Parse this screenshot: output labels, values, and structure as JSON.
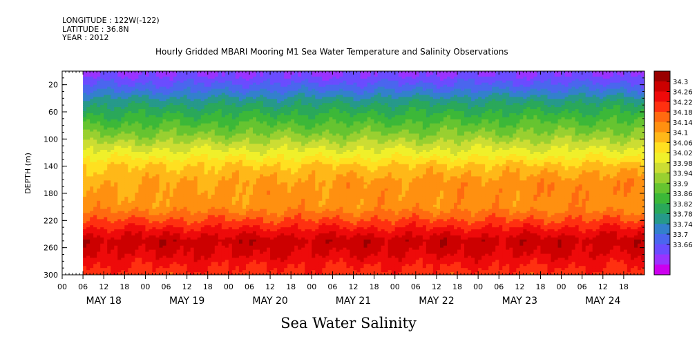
{
  "meta": {
    "longitude": "LONGITUDE : 122W(-122)",
    "latitude": "LATITUDE : 36.8N",
    "year": "YEAR : 2012"
  },
  "chart_data": {
    "type": "heatmap",
    "title": "Hourly Gridded MBARI Mooring M1 Sea Water Temperature and Salinity Observations",
    "xlabel": "Sea Water Salinity",
    "ylabel": "DEPTH (m)",
    "ylim": [
      300,
      0
    ],
    "xlim_hours_since_may18_00": [
      0,
      168
    ],
    "data_start_hour": 6,
    "y_ticks": [
      "20",
      "60",
      "100",
      "140",
      "180",
      "220",
      "260",
      "300"
    ],
    "y_tick_values": [
      20,
      60,
      100,
      140,
      180,
      220,
      260,
      300
    ],
    "x_hour_labels": [
      "00",
      "06",
      "12",
      "18",
      "00",
      "06",
      "12",
      "18",
      "00",
      "06",
      "12",
      "18",
      "00",
      "06",
      "12",
      "18",
      "00",
      "06",
      "12",
      "18",
      "00",
      "06",
      "12",
      "18",
      "00",
      "06",
      "12",
      "18"
    ],
    "x_day_labels": [
      "MAY 18",
      "MAY 19",
      "MAY 20",
      "MAY 21",
      "MAY 22",
      "MAY 23",
      "MAY 24"
    ],
    "colorbar": {
      "labels": [
        "34.3",
        "34.26",
        "34.22",
        "34.18",
        "34.14",
        "34.1",
        "34.06",
        "34.02",
        "33.98",
        "33.94",
        "33.9",
        "33.86",
        "33.82",
        "33.78",
        "33.74",
        "33.7",
        "33.66"
      ],
      "min": 33.66,
      "max": 34.3,
      "colors": [
        "#cc00ee",
        "#9a33ff",
        "#6a4cff",
        "#4a66ee",
        "#3380cc",
        "#26998a",
        "#2aa85a",
        "#3cb838",
        "#66c430",
        "#99d030",
        "#ccdd33",
        "#f0f02a",
        "#ffe020",
        "#ffb818",
        "#ff9010",
        "#ff6a10",
        "#ff3010",
        "#ee0a0a",
        "#cc0000",
        "#990000"
      ]
    },
    "profile": {
      "depths": [
        0,
        10,
        25,
        45,
        70,
        95,
        118,
        140,
        165,
        200,
        225,
        250,
        270,
        285,
        300
      ],
      "salinity": [
        33.69,
        33.72,
        33.76,
        33.83,
        33.89,
        33.95,
        34.02,
        34.08,
        34.11,
        34.13,
        34.2,
        34.27,
        34.25,
        34.22,
        34.2
      ]
    }
  }
}
